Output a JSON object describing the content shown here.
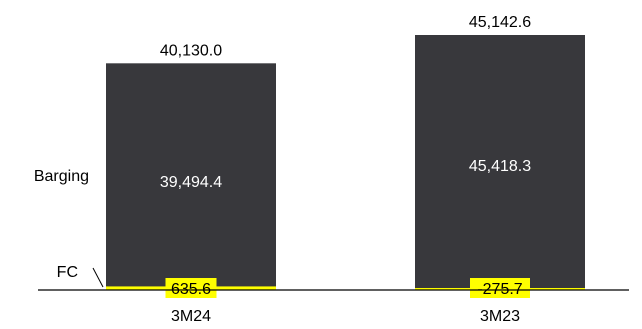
{
  "chart_data": {
    "type": "bar",
    "stacked": true,
    "title": "",
    "xlabel": "",
    "ylabel": "",
    "categories": [
      "3M24",
      "3M23"
    ],
    "totals": [
      "40,130.0",
      "45,142.6"
    ],
    "total_values": [
      40130.0,
      45142.6
    ],
    "series": [
      {
        "name": "Barging",
        "values": [
          39494.4,
          45418.3
        ],
        "labels": [
          "39,494.4",
          "45,418.3"
        ],
        "color": "#38383c"
      },
      {
        "name": "FC",
        "values": [
          635.6,
          -275.7
        ],
        "labels": [
          "635.6",
          "-275.7"
        ],
        "color": "#ffff00"
      }
    ],
    "ylim": [
      0,
      46000
    ],
    "grid": false,
    "legend": "left, inline labels"
  },
  "colors": {
    "bar": "#38383c",
    "highlight": "#ffff00",
    "text_on_bar": "#ffffff",
    "text": "#000000",
    "axis": "#000000"
  }
}
